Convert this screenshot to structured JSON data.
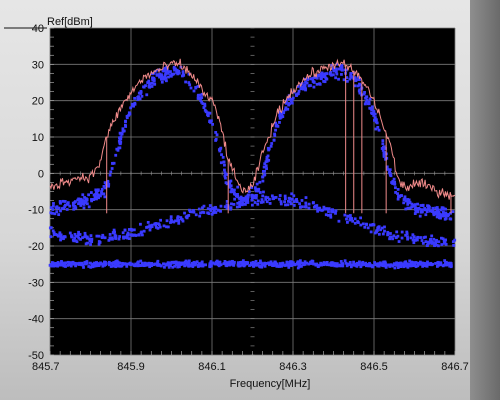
{
  "chart_data": {
    "type": "scatter",
    "xlabel": "Frequency[MHz]",
    "ylabel": "Ref[dBm]",
    "xlim": [
      845.7,
      846.7
    ],
    "ylim": [
      -50,
      40
    ],
    "xticks": [
      845.7,
      845.9,
      846.1,
      846.3,
      846.5,
      846.7
    ],
    "xtick_labels": [
      "845.7",
      "845.9",
      "846.1",
      "846.3",
      "846.5",
      "846.7"
    ],
    "yticks": [
      40,
      30,
      20,
      10,
      0,
      -10,
      -20,
      -30,
      -40,
      -50
    ],
    "ytick_labels": [
      "40",
      "30",
      "20",
      "10",
      "0",
      "-10",
      "-20",
      "-30",
      "-40",
      "-50"
    ],
    "grid": true,
    "background": "#000000",
    "colors": {
      "trace": "#f08a8a",
      "points": "#3a3aff",
      "grid": "#7a7a7a"
    },
    "series": [
      {
        "type": "line",
        "x": [
          845.7,
          845.74,
          845.78,
          845.8,
          845.82,
          845.84,
          845.86,
          845.88,
          845.9,
          845.92,
          845.94,
          845.96,
          845.98,
          846.0,
          846.02,
          846.04,
          846.06,
          846.08,
          846.1,
          846.12,
          846.14,
          846.16,
          846.18,
          846.2,
          846.22,
          846.24,
          846.26,
          846.28,
          846.3,
          846.32,
          846.34,
          846.36,
          846.38,
          846.4,
          846.42,
          846.44,
          846.46,
          846.48,
          846.5,
          846.52,
          846.54,
          846.56,
          846.58,
          846.6,
          846.62,
          846.64,
          846.66,
          846.7
        ],
        "y": [
          -4,
          -2,
          -1,
          -1,
          2,
          10,
          15,
          19,
          22,
          25,
          27,
          28,
          29,
          30,
          30,
          28,
          26,
          22,
          20,
          14,
          4,
          -2,
          -5,
          -4,
          4,
          10,
          16,
          20,
          23,
          25,
          27,
          28,
          29,
          30,
          30,
          29,
          27,
          24,
          20,
          14,
          8,
          -2,
          -4,
          -3,
          -3,
          -4,
          -5,
          -6
        ]
      },
      {
        "type": "scatter",
        "band": "upper-envelope",
        "x": [
          845.7,
          845.74,
          845.78,
          845.8,
          845.82,
          845.84,
          845.86,
          845.88,
          845.9,
          845.92,
          845.94,
          845.96,
          845.98,
          846.0,
          846.02,
          846.04,
          846.06,
          846.08,
          846.1,
          846.12,
          846.14,
          846.16,
          846.18,
          846.2,
          846.22,
          846.24,
          846.26,
          846.28,
          846.3,
          846.32,
          846.34,
          846.36,
          846.38,
          846.4,
          846.42,
          846.44,
          846.46,
          846.48,
          846.5,
          846.52,
          846.54,
          846.56,
          846.58,
          846.6,
          846.62,
          846.64,
          846.66,
          846.7
        ],
        "y": [
          -10,
          -9,
          -8,
          -7,
          -6,
          -4,
          4,
          12,
          17,
          21,
          24,
          26,
          27,
          28,
          28,
          26,
          23,
          19,
          14,
          6,
          -3,
          -6,
          -7,
          -6,
          -3,
          6,
          13,
          18,
          21,
          23,
          25,
          26,
          27,
          28,
          28,
          27,
          25,
          21,
          16,
          8,
          0,
          -6,
          -8,
          -9,
          -10,
          -10,
          -11,
          -12
        ]
      },
      {
        "type": "scatter",
        "band": "middle-arc",
        "x": [
          845.7,
          845.75,
          845.8,
          845.85,
          845.9,
          845.95,
          846.0,
          846.05,
          846.1,
          846.15,
          846.2,
          846.25,
          846.3,
          846.35,
          846.4,
          846.45,
          846.5,
          846.55,
          846.6,
          846.65,
          846.7
        ],
        "y": [
          -16,
          -17.5,
          -18,
          -17.5,
          -16.5,
          -15,
          -13,
          -11.5,
          -10,
          -8.5,
          -7.5,
          -7,
          -7.5,
          -9,
          -11,
          -13,
          -15,
          -17,
          -18,
          -19,
          -19
        ]
      },
      {
        "type": "scatter",
        "band": "noise-floor",
        "x": [
          845.7,
          845.8,
          845.9,
          846.0,
          846.1,
          846.2,
          846.3,
          846.4,
          846.5,
          846.6,
          846.7
        ],
        "y": [
          -25,
          -25,
          -25,
          -25,
          -25,
          -25,
          -25,
          -25,
          -25,
          -25,
          -25
        ]
      }
    ]
  }
}
